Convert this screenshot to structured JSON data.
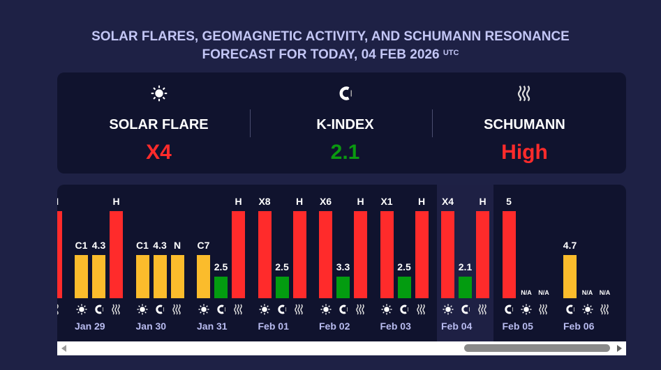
{
  "header": {
    "title_line1": "SOLAR FLARES, GEOMAGNETIC ACTIVITY, AND SCHUMANN RESONANCE",
    "title_line2": "FORECAST FOR TODAY, 04 FEB 2026",
    "title_sup": "UTC"
  },
  "summary": [
    {
      "icon": "sun",
      "label": "SOLAR FLARE",
      "value": "X4",
      "color": "#ff2b2b"
    },
    {
      "icon": "magnet",
      "label": "K-INDEX",
      "value": "2.1",
      "color": "#0a9a10"
    },
    {
      "icon": "schumann",
      "label": "SCHUMANN",
      "value": "High",
      "color": "#ff2b2b"
    }
  ],
  "colors": {
    "high": "#ff2b2b",
    "mid": "#fbbc2c",
    "low": "#039c10"
  },
  "days": [
    {
      "date": "",
      "partial": true,
      "bars": [
        null,
        null,
        {
          "label": "H",
          "level": "high",
          "icon": "schumann"
        }
      ]
    },
    {
      "date": "Jan 29",
      "bars": [
        {
          "label": "C1",
          "level": "mid",
          "icon": "sun"
        },
        {
          "label": "4.3",
          "level": "mid",
          "icon": "magnet"
        },
        {
          "label": "H",
          "level": "high",
          "icon": "schumann"
        }
      ]
    },
    {
      "date": "Jan 30",
      "bars": [
        {
          "label": "C1",
          "level": "mid",
          "icon": "sun"
        },
        {
          "label": "4.3",
          "level": "mid",
          "icon": "magnet"
        },
        {
          "label": "N",
          "level": "mid",
          "icon": "schumann"
        }
      ]
    },
    {
      "date": "Jan 31",
      "bars": [
        {
          "label": "C7",
          "level": "mid",
          "icon": "sun"
        },
        {
          "label": "2.5",
          "level": "low",
          "icon": "magnet"
        },
        {
          "label": "H",
          "level": "high",
          "icon": "schumann"
        }
      ]
    },
    {
      "date": "Feb 01",
      "bars": [
        {
          "label": "X8",
          "level": "high",
          "icon": "sun"
        },
        {
          "label": "2.5",
          "level": "low",
          "icon": "magnet"
        },
        {
          "label": "H",
          "level": "high",
          "icon": "schumann"
        }
      ]
    },
    {
      "date": "Feb 02",
      "bars": [
        {
          "label": "X6",
          "level": "high",
          "icon": "sun"
        },
        {
          "label": "3.3",
          "level": "low",
          "icon": "magnet"
        },
        {
          "label": "H",
          "level": "high",
          "icon": "schumann"
        }
      ]
    },
    {
      "date": "Feb 03",
      "bars": [
        {
          "label": "X1",
          "level": "high",
          "icon": "sun"
        },
        {
          "label": "2.5",
          "level": "low",
          "icon": "magnet"
        },
        {
          "label": "H",
          "level": "high",
          "icon": "schumann"
        }
      ]
    },
    {
      "date": "Feb 04",
      "today": true,
      "bars": [
        {
          "label": "X4",
          "level": "high",
          "icon": "sun"
        },
        {
          "label": "2.1",
          "level": "low",
          "icon": "magnet"
        },
        {
          "label": "H",
          "level": "high",
          "icon": "schumann"
        }
      ]
    },
    {
      "date": "Feb 05",
      "bars": [
        {
          "label": "5",
          "level": "high",
          "icon": "magnet"
        },
        {
          "label": "N/A",
          "level": "na",
          "icon": "sun"
        },
        {
          "label": "N/A",
          "level": "na",
          "icon": "schumann"
        }
      ]
    },
    {
      "date": "Feb 06",
      "bars": [
        {
          "label": "4.7",
          "level": "mid",
          "icon": "magnet"
        },
        {
          "label": "N/A",
          "level": "na",
          "icon": "sun"
        },
        {
          "label": "N/A",
          "level": "na",
          "icon": "schumann"
        }
      ]
    }
  ]
}
